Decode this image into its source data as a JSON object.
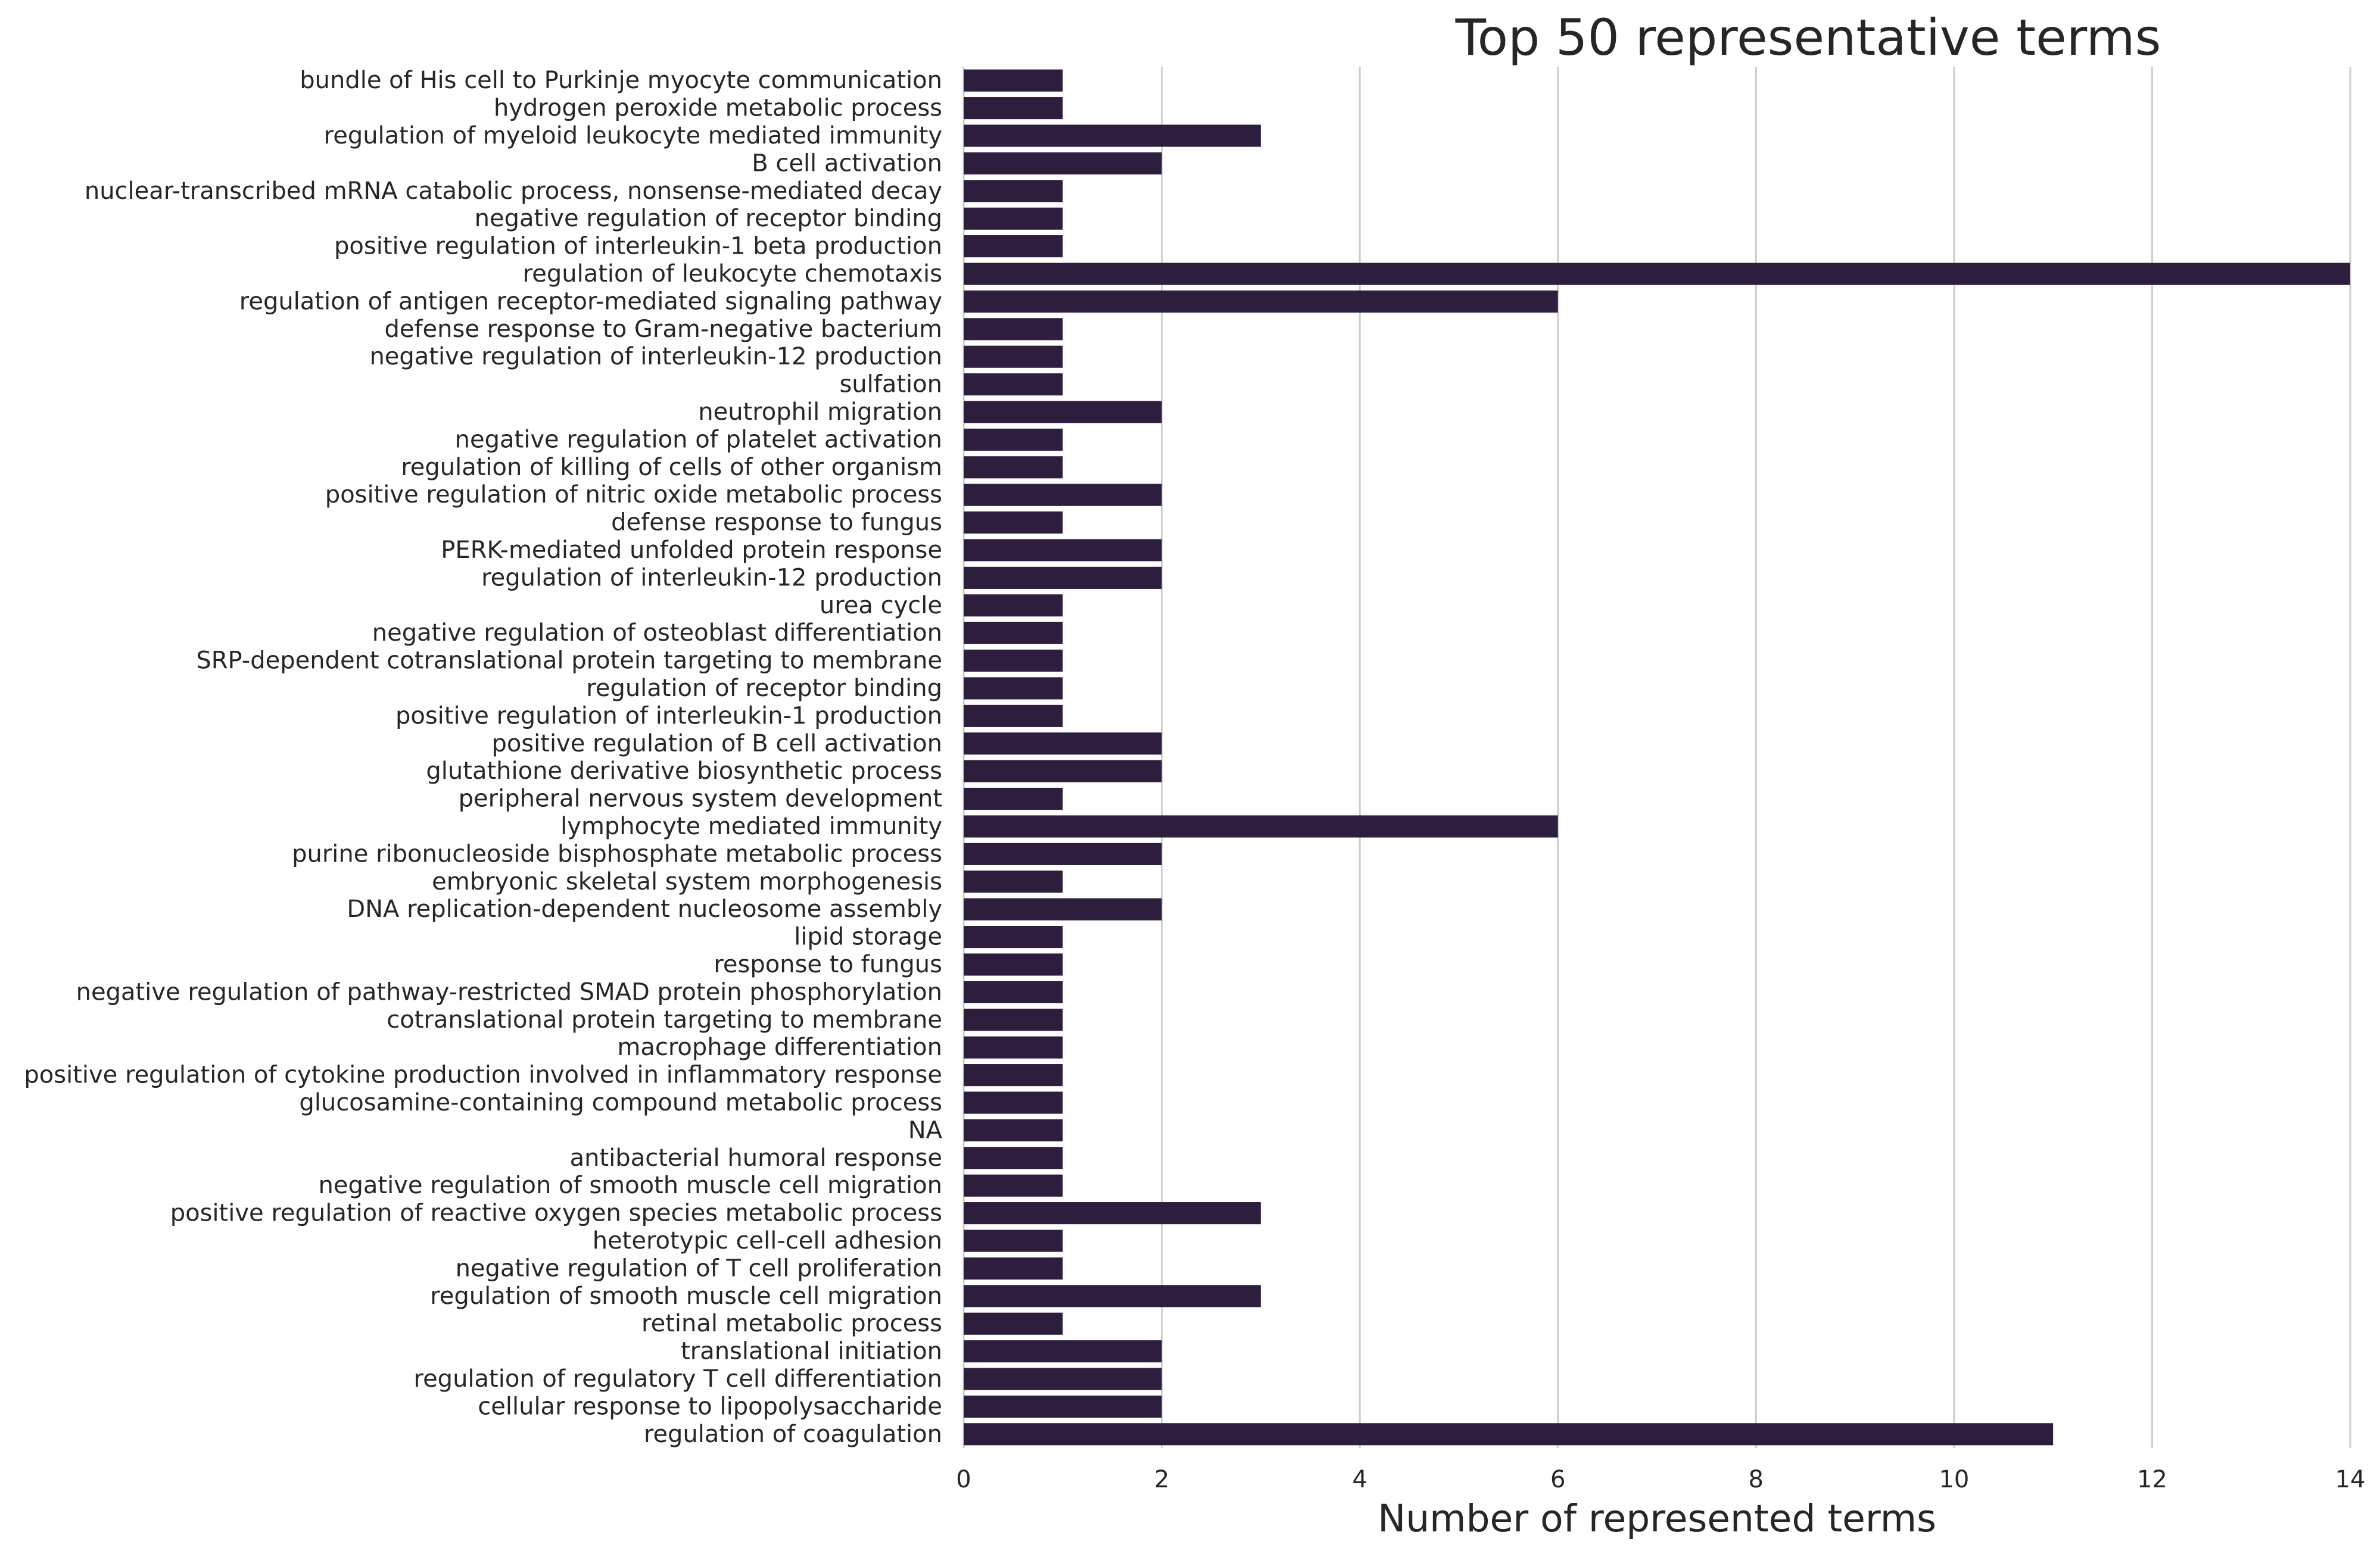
{
  "chart_data": {
    "type": "bar",
    "orientation": "horizontal",
    "title": "Top 50 representative terms",
    "xlabel": "Number of represented terms",
    "ylabel": "",
    "xlim": [
      0,
      14
    ],
    "xticks": [
      "0",
      "2",
      "4",
      "6",
      "8",
      "10",
      "12",
      "14"
    ],
    "grid": "vertical",
    "bar_color": "#2d1e3e",
    "categories": [
      "bundle of His cell to Purkinje myocyte communication",
      "hydrogen peroxide metabolic process",
      "regulation of myeloid leukocyte mediated immunity",
      "B cell activation",
      "nuclear-transcribed mRNA catabolic process, nonsense-mediated decay",
      "negative regulation of receptor binding",
      "positive regulation of interleukin-1 beta production",
      "regulation of leukocyte chemotaxis",
      "regulation of antigen receptor-mediated signaling pathway",
      "defense response to Gram-negative bacterium",
      "negative regulation of interleukin-12 production",
      "sulfation",
      "neutrophil migration",
      "negative regulation of platelet activation",
      "regulation of killing of cells of other organism",
      "positive regulation of nitric oxide metabolic process",
      "defense response to fungus",
      "PERK-mediated unfolded protein response",
      "regulation of interleukin-12 production",
      "urea cycle",
      "negative regulation of osteoblast differentiation",
      "SRP-dependent cotranslational protein targeting to membrane",
      "regulation of receptor binding",
      "positive regulation of interleukin-1 production",
      "positive regulation of B cell activation",
      "glutathione derivative biosynthetic process",
      "peripheral nervous system development",
      "lymphocyte mediated immunity",
      "purine ribonucleoside bisphosphate metabolic process",
      "embryonic skeletal system morphogenesis",
      "DNA replication-dependent nucleosome assembly",
      "lipid storage",
      "response to fungus",
      "negative regulation of pathway-restricted SMAD protein phosphorylation",
      "cotranslational protein targeting to membrane",
      "macrophage differentiation",
      "positive regulation of cytokine production involved in inflammatory response",
      "glucosamine-containing compound metabolic process",
      "NA",
      "antibacterial humoral response",
      "negative regulation of smooth muscle cell migration",
      "positive regulation of reactive oxygen species metabolic process",
      "heterotypic cell-cell adhesion",
      "negative regulation of T cell proliferation",
      "regulation of smooth muscle cell migration",
      "retinal metabolic process",
      "translational initiation",
      "regulation of regulatory T cell differentiation",
      "cellular response to lipopolysaccharide",
      "regulation of coagulation"
    ],
    "values": [
      1,
      1,
      3,
      2,
      1,
      1,
      1,
      14,
      6,
      1,
      1,
      1,
      2,
      1,
      1,
      2,
      1,
      2,
      2,
      1,
      1,
      1,
      1,
      1,
      2,
      2,
      1,
      6,
      2,
      1,
      2,
      1,
      1,
      1,
      1,
      1,
      1,
      1,
      1,
      1,
      1,
      3,
      1,
      1,
      3,
      1,
      2,
      2,
      2,
      11
    ]
  }
}
